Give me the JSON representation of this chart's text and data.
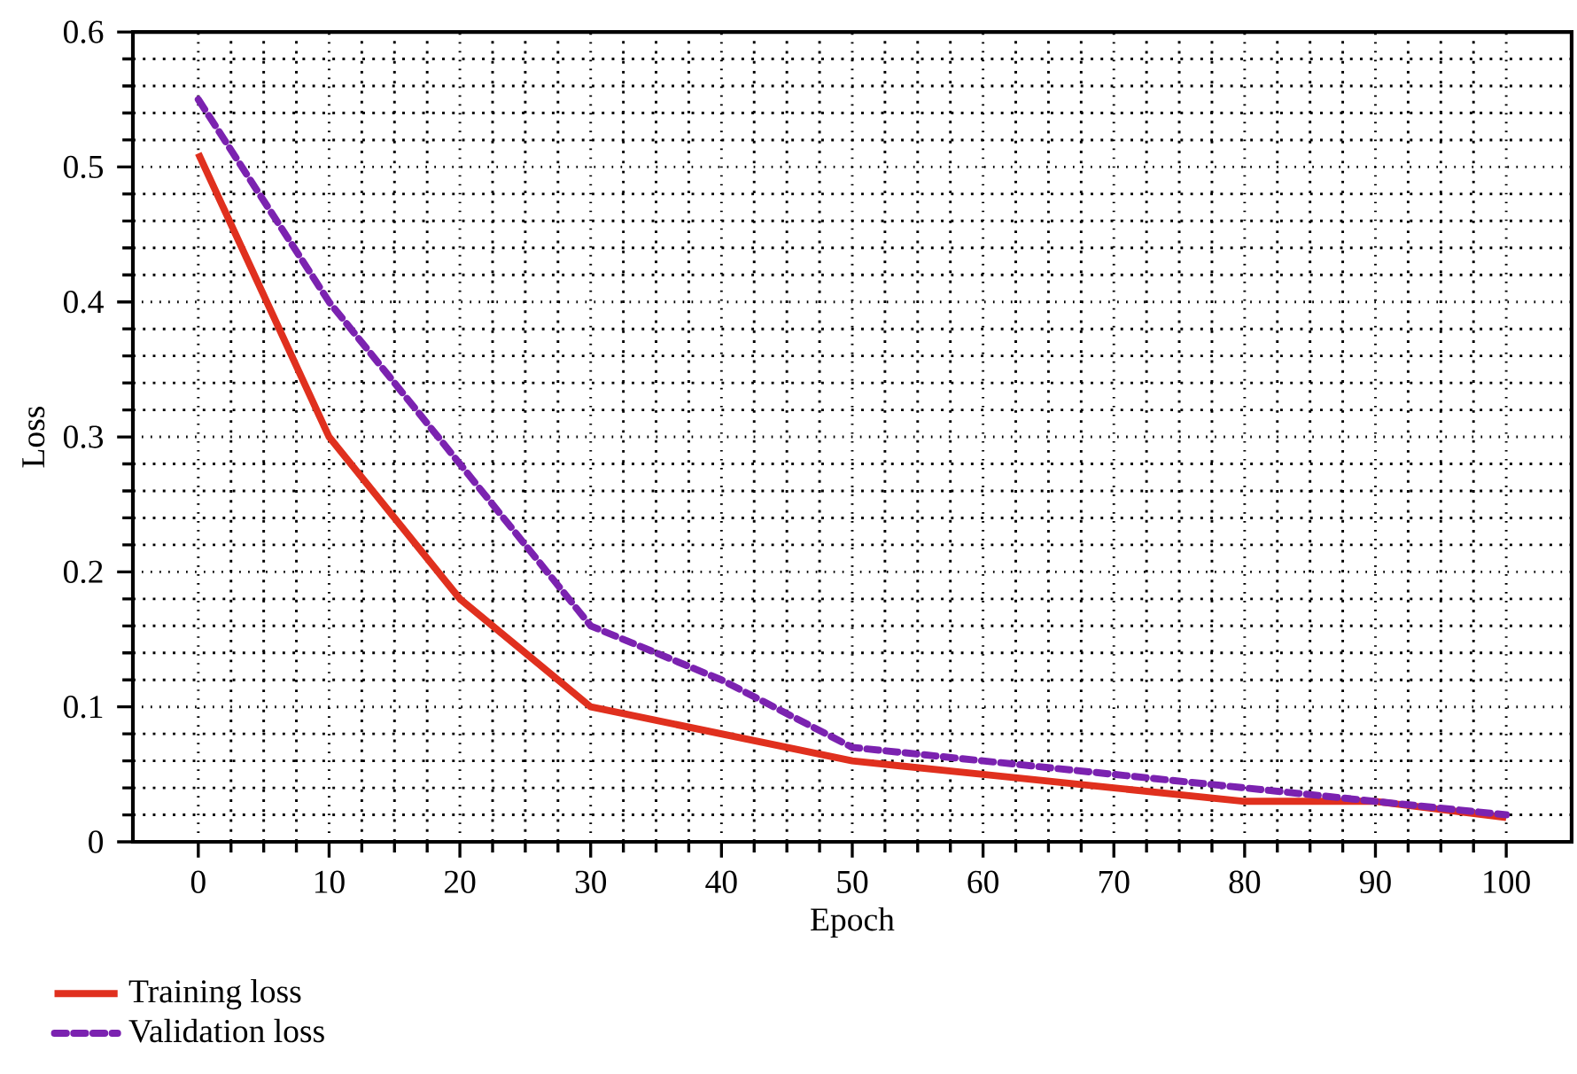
{
  "chart_data": {
    "type": "line",
    "xlabel": "Epoch",
    "ylabel": "Loss",
    "x": [
      0,
      10,
      20,
      30,
      40,
      50,
      60,
      70,
      80,
      90,
      100
    ],
    "series": [
      {
        "name": "Training loss",
        "color": "#e0301e",
        "line_style": "solid",
        "values": [
          0.51,
          0.3,
          0.18,
          0.1,
          0.08,
          0.06,
          0.05,
          0.04,
          0.03,
          0.03,
          0.018
        ]
      },
      {
        "name": "Validation loss",
        "color": "#7b22b0",
        "line_style": "dashed",
        "values": [
          0.55,
          0.4,
          0.28,
          0.16,
          0.12,
          0.07,
          0.06,
          0.05,
          0.04,
          0.03,
          0.02
        ]
      }
    ],
    "xlim": [
      -5,
      105
    ],
    "ylim": [
      0,
      0.6
    ],
    "xticks": [
      0,
      10,
      20,
      30,
      40,
      50,
      60,
      70,
      80,
      90,
      100
    ],
    "yticks": [
      0,
      0.1,
      0.2,
      0.3,
      0.4,
      0.5,
      0.6
    ],
    "grid": true,
    "legend": "bottom left",
    "marker": "none"
  }
}
